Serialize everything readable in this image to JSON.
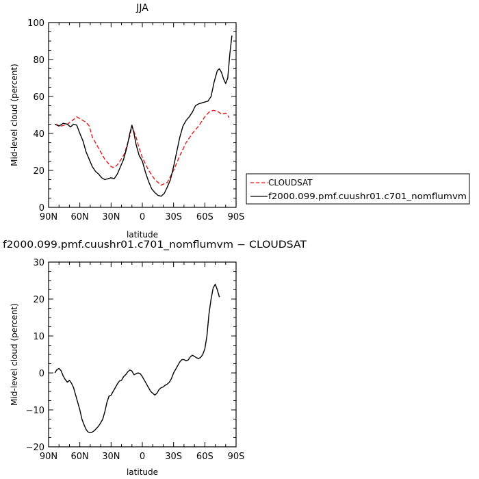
{
  "chart_data": [
    {
      "type": "line",
      "title": "JJA",
      "xlabel": "latitude",
      "ylabel": "Mid-level cloud (percent)",
      "xlim": [
        90,
        -90
      ],
      "ylim": [
        0,
        100
      ],
      "xticks": [
        90,
        60,
        30,
        0,
        -30,
        -60,
        -90
      ],
      "xtick_labels": [
        "90N",
        "60N",
        "30N",
        "0",
        "30S",
        "60S",
        "90S"
      ],
      "yticks": [
        0,
        20,
        40,
        60,
        80,
        100
      ],
      "ytick_labels": [
        "0",
        "20",
        "40",
        "60",
        "80",
        "100"
      ],
      "legend_position": "right",
      "series": [
        {
          "name": "CLOUDSAT",
          "color": "#e41a1c",
          "style": "dashed",
          "points": [
            [
              84,
              45
            ],
            [
              78,
              44
            ],
            [
              72,
              45
            ],
            [
              66,
              47.5
            ],
            [
              63,
              49
            ],
            [
              60,
              48
            ],
            [
              54,
              46
            ],
            [
              51,
              44
            ],
            [
              48,
              38
            ],
            [
              42,
              32
            ],
            [
              36,
              26
            ],
            [
              30,
              22
            ],
            [
              27,
              21.5
            ],
            [
              24,
              23
            ],
            [
              18,
              28
            ],
            [
              15,
              33
            ],
            [
              12,
              38.5
            ],
            [
              10,
              44
            ],
            [
              6,
              38
            ],
            [
              3,
              32
            ],
            [
              0,
              27
            ],
            [
              -6,
              20
            ],
            [
              -12,
              15
            ],
            [
              -18,
              12
            ],
            [
              -24,
              13.5
            ],
            [
              -30,
              20
            ],
            [
              -36,
              28
            ],
            [
              -42,
              35
            ],
            [
              -48,
              40
            ],
            [
              -54,
              44
            ],
            [
              -60,
              49
            ],
            [
              -64,
              51.5
            ],
            [
              -68,
              52.5
            ],
            [
              -72,
              52
            ],
            [
              -76,
              50.5
            ],
            [
              -80,
              51
            ],
            [
              -82,
              50
            ],
            [
              -83,
              48.5
            ]
          ]
        },
        {
          "name": "f2000.099.pmf.cuushr01.c701_nomflumvm",
          "color": "#000000",
          "style": "solid",
          "points": [
            [
              84,
              45
            ],
            [
              80,
              44
            ],
            [
              76,
              45.5
            ],
            [
              72,
              45
            ],
            [
              69,
              43.5
            ],
            [
              66,
              45
            ],
            [
              63,
              44.5
            ],
            [
              60,
              40
            ],
            [
              57,
              36
            ],
            [
              54,
              30
            ],
            [
              51,
              26
            ],
            [
              48,
              22
            ],
            [
              45,
              19.5
            ],
            [
              42,
              18
            ],
            [
              39,
              16
            ],
            [
              36,
              15
            ],
            [
              33,
              15.5
            ],
            [
              30,
              16
            ],
            [
              27,
              15.5
            ],
            [
              24,
              18
            ],
            [
              21,
              22
            ],
            [
              18,
              26
            ],
            [
              15,
              32
            ],
            [
              12,
              40
            ],
            [
              10,
              44.5
            ],
            [
              8,
              40
            ],
            [
              6,
              34
            ],
            [
              3,
              28
            ],
            [
              0,
              25
            ],
            [
              -3,
              19
            ],
            [
              -6,
              14
            ],
            [
              -9,
              10
            ],
            [
              -12,
              8
            ],
            [
              -15,
              6.5
            ],
            [
              -18,
              6
            ],
            [
              -21,
              7.5
            ],
            [
              -24,
              11
            ],
            [
              -27,
              15
            ],
            [
              -30,
              22
            ],
            [
              -33,
              30
            ],
            [
              -36,
              38
            ],
            [
              -39,
              44
            ],
            [
              -42,
              47
            ],
            [
              -45,
              49
            ],
            [
              -48,
              51.5
            ],
            [
              -51,
              55
            ],
            [
              -54,
              56
            ],
            [
              -57,
              56.5
            ],
            [
              -60,
              57
            ],
            [
              -63,
              57.5
            ],
            [
              -66,
              60
            ],
            [
              -69,
              68
            ],
            [
              -72,
              74
            ],
            [
              -74,
              75
            ],
            [
              -76,
              73
            ],
            [
              -78,
              69.5
            ],
            [
              -80,
              67
            ],
            [
              -82,
              70
            ],
            [
              -84,
              83
            ],
            [
              -86,
              93
            ]
          ]
        }
      ]
    },
    {
      "type": "line",
      "title": "f2000.099.pmf.cuushr01.c701_nomflumvm − CLOUDSAT",
      "xlabel": "latitude",
      "ylabel": "Mid-level cloud (percent)",
      "xlim": [
        90,
        -90
      ],
      "ylim": [
        -20,
        30
      ],
      "xticks": [
        90,
        60,
        30,
        0,
        -30,
        -60,
        -90
      ],
      "xtick_labels": [
        "90N",
        "60N",
        "30N",
        "0",
        "30S",
        "60S",
        "90S"
      ],
      "yticks": [
        -20,
        -10,
        0,
        10,
        20,
        30
      ],
      "ytick_labels": [
        "−20",
        "−10",
        "0",
        "10",
        "20",
        "30"
      ],
      "series": [
        {
          "color": "#000000",
          "style": "solid",
          "points": [
            [
              84,
              0
            ],
            [
              82,
              0.9
            ],
            [
              80,
              1.2
            ],
            [
              78,
              0.6
            ],
            [
              76,
              -0.8
            ],
            [
              74,
              -1.8
            ],
            [
              72,
              -2.5
            ],
            [
              70,
              -2
            ],
            [
              68,
              -2.8
            ],
            [
              66,
              -4
            ],
            [
              64,
              -6
            ],
            [
              62,
              -8
            ],
            [
              60,
              -10
            ],
            [
              58,
              -12.5
            ],
            [
              56,
              -14
            ],
            [
              54,
              -15.3
            ],
            [
              52,
              -16
            ],
            [
              50,
              -16.2
            ],
            [
              48,
              -16
            ],
            [
              46,
              -15.6
            ],
            [
              44,
              -15
            ],
            [
              42,
              -14.4
            ],
            [
              40,
              -13.5
            ],
            [
              38,
              -12.5
            ],
            [
              36,
              -10.5
            ],
            [
              34,
              -8
            ],
            [
              32,
              -6.3
            ],
            [
              30,
              -6
            ],
            [
              28,
              -5
            ],
            [
              26,
              -4
            ],
            [
              24,
              -3
            ],
            [
              22,
              -2.2
            ],
            [
              20,
              -2
            ],
            [
              18,
              -1
            ],
            [
              16,
              -0.5
            ],
            [
              14,
              0.3
            ],
            [
              12,
              0.8
            ],
            [
              10,
              0.5
            ],
            [
              8,
              -0.5
            ],
            [
              6,
              -0.2
            ],
            [
              4,
              0
            ],
            [
              2,
              -0.2
            ],
            [
              0,
              -1
            ],
            [
              -2,
              -2
            ],
            [
              -4,
              -3
            ],
            [
              -6,
              -4
            ],
            [
              -8,
              -5
            ],
            [
              -10,
              -5.5
            ],
            [
              -12,
              -6
            ],
            [
              -14,
              -5.5
            ],
            [
              -16,
              -4.5
            ],
            [
              -18,
              -4
            ],
            [
              -20,
              -3.8
            ],
            [
              -22,
              -3.3
            ],
            [
              -24,
              -3
            ],
            [
              -26,
              -2.5
            ],
            [
              -28,
              -1.5
            ],
            [
              -30,
              0
            ],
            [
              -32,
              1
            ],
            [
              -34,
              2
            ],
            [
              -36,
              3
            ],
            [
              -38,
              3.6
            ],
            [
              -40,
              3.6
            ],
            [
              -42,
              3.3
            ],
            [
              -44,
              3.5
            ],
            [
              -46,
              4.3
            ],
            [
              -48,
              4.8
            ],
            [
              -50,
              4.5
            ],
            [
              -52,
              4.1
            ],
            [
              -54,
              3.9
            ],
            [
              -56,
              4.2
            ],
            [
              -58,
              5
            ],
            [
              -60,
              6.5
            ],
            [
              -62,
              10
            ],
            [
              -64,
              16
            ],
            [
              -66,
              20
            ],
            [
              -68,
              23
            ],
            [
              -70,
              24
            ],
            [
              -72,
              22.5
            ],
            [
              -74,
              20.5
            ]
          ]
        }
      ]
    }
  ]
}
